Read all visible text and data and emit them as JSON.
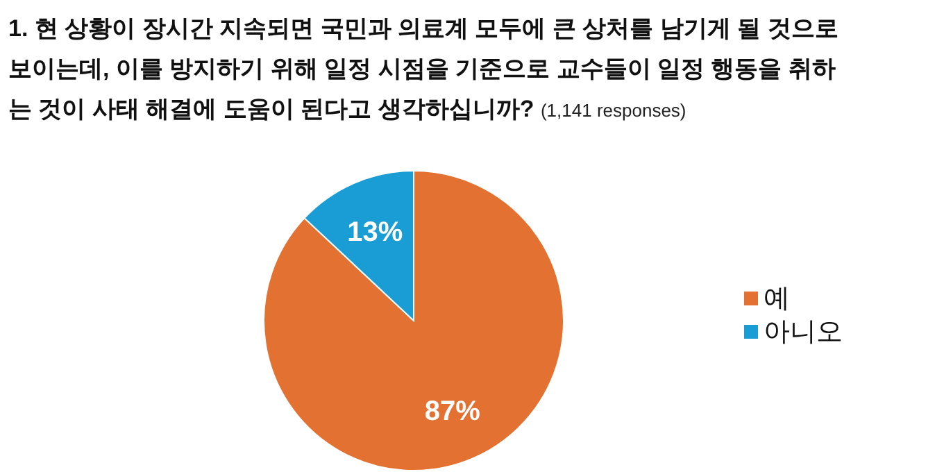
{
  "chart_data": {
    "type": "pie",
    "title": "1. 현 상황이 장시간 지속되면 국민과 의료계 모두에 큰 상처를 남기게 될 것으로 보이는데, 이를 방지하기 위해 일정 시점을 기준으로 교수들이 일정 행동을 취하는 것이 사태 해결에 도움이 된다고 생각하십니까?",
    "subtitle": "(1,141 responses)",
    "categories": [
      "예",
      "아니오"
    ],
    "values": [
      87,
      13
    ],
    "colors": [
      "#e37232",
      "#1a9dd4"
    ],
    "value_labels": [
      "87%",
      "13%"
    ],
    "legend": "right"
  }
}
